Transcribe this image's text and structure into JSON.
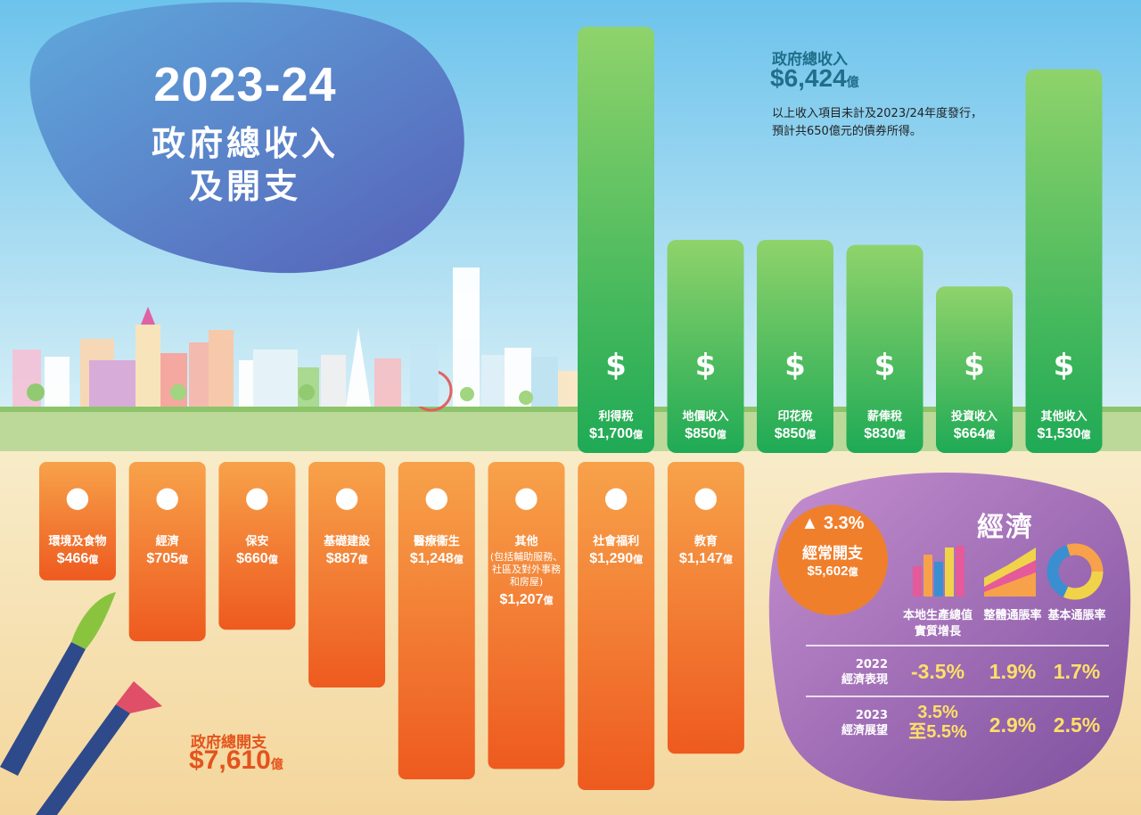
{
  "header": {
    "year": "2023-24",
    "title_line1": "政府總收入",
    "title_line2": "及開支"
  },
  "revenue_total": {
    "label": "政府總收入",
    "amount": "$6,424",
    "unit": "億",
    "note_line1": "以上收入項目未計及2023/24年度發行，",
    "note_line2": "預計共650億元的債券所得。"
  },
  "expenditure_total": {
    "label": "政府總開支",
    "amount": "$7,610",
    "unit": "億"
  },
  "recurrent": {
    "pct": "3.3%",
    "label": "經常開支",
    "amount": "$5,602",
    "unit": "億"
  },
  "economy": {
    "title": "經濟",
    "headers": [
      "本地生產總值\n實質增長",
      "整體通脹率",
      "基本通脹率"
    ],
    "rows": [
      {
        "label": "2022\n經濟表現",
        "values": [
          "-3.5%",
          "1.9%",
          "1.7%"
        ]
      },
      {
        "label": "2023\n經濟展望",
        "values": [
          "3.5%\n至5.5%",
          "2.9%",
          "2.5%"
        ]
      }
    ]
  },
  "colors": {
    "revenue_bar_top": "#8fd36b",
    "revenue_bar_bottom": "#1faa55",
    "expenditure_bar_top": "#f7a24a",
    "expenditure_bar_bottom": "#ee5a1f",
    "sky_top": "#6fc6ee",
    "sky_bottom": "#cdebf5",
    "title_blob": "#5b73c4",
    "econ_blob": "#8a59a8",
    "accent_teal": "#1f6f8b",
    "accent_orange": "#e3541c"
  },
  "chart_data": [
    {
      "type": "bar",
      "categories": [
        "利得稅",
        "地價收入",
        "印花稅",
        "薪俸稅",
        "投資收入",
        "其他收入"
      ],
      "values": [
        1700,
        850,
        850,
        830,
        664,
        1530
      ],
      "value_labels": [
        "$1,700",
        "$850",
        "$850",
        "$830",
        "$664",
        "$1,530"
      ],
      "unit": "億",
      "icons": [
        "growth-chart-icon",
        "land-building-icon",
        "stamp-seal-icon",
        "salary-person-icon",
        "investment-bars-icon",
        "money-bag-icon"
      ]
    },
    {
      "type": "bar",
      "categories": [
        "環境及食物",
        "經濟",
        "保安",
        "基礎建設",
        "醫療衞生",
        "其他",
        "社會福利",
        "教育"
      ],
      "values": [
        466,
        705,
        660,
        887,
        1248,
        1207,
        1290,
        1147
      ],
      "value_labels": [
        "$466",
        "$705",
        "$660",
        "$887",
        "$1,248",
        "$1,207",
        "$1,290",
        "$1,147"
      ],
      "notes": [
        "",
        "",
        "",
        "",
        "",
        "(包括輔助服務、\n社區及對外事務\n和房屋)",
        "",
        ""
      ],
      "unit": "億",
      "icons": [
        "tree-fish-apple-icon",
        "coin-stack-icon",
        "police-officers-icon",
        "excavator-icon",
        "medical-kit-icon",
        "family-icon",
        "heart-hand-icon",
        "graduation-cap-icon"
      ]
    }
  ]
}
